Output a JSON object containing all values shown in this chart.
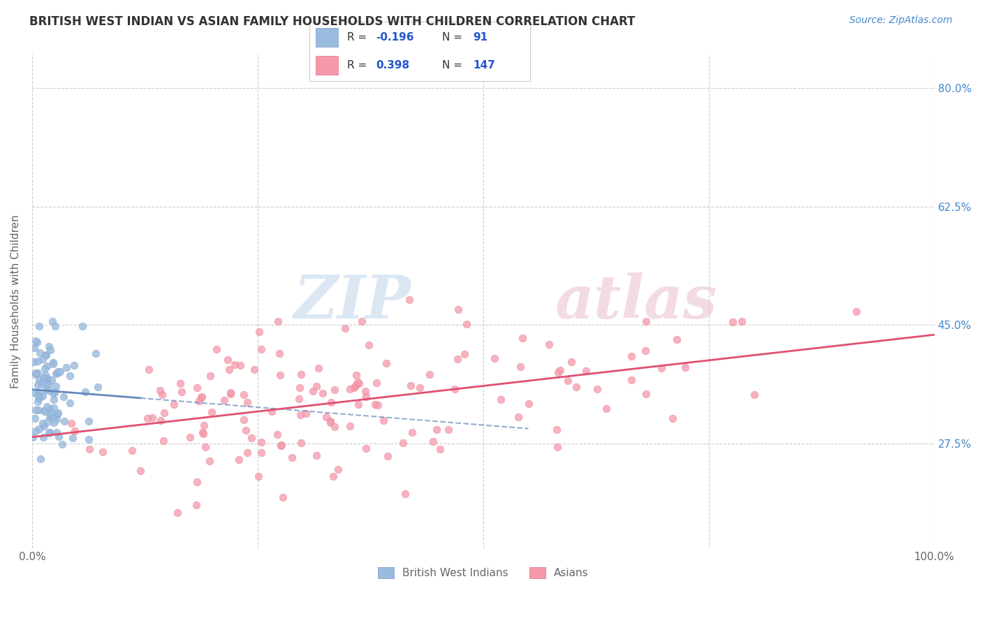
{
  "title": "BRITISH WEST INDIAN VS ASIAN FAMILY HOUSEHOLDS WITH CHILDREN CORRELATION CHART",
  "source": "Source: ZipAtlas.com",
  "ylabel": "Family Households with Children",
  "xlim": [
    0.0,
    1.0
  ],
  "ylim": [
    0.12,
    0.85
  ],
  "yticks": [
    0.275,
    0.45,
    0.625,
    0.8
  ],
  "ytick_labels": [
    "27.5%",
    "45.0%",
    "62.5%",
    "80.0%"
  ],
  "xtick_labels": [
    "0.0%",
    "100.0%"
  ],
  "xtick_pos": [
    0.0,
    1.0
  ],
  "blue_R": -0.196,
  "blue_N": 91,
  "pink_R": 0.398,
  "pink_N": 147,
  "blue_color": "#99bbdd",
  "blue_edge_color": "#7799cc",
  "pink_color": "#f599aa",
  "pink_edge_color": "#e07080",
  "blue_line_color": "#6688bb",
  "pink_line_color": "#e05070",
  "blue_label": "British West Indians",
  "pink_label": "Asians",
  "title_color": "#333333",
  "source_color": "#4488cc",
  "legend_text_color": "#333333",
  "legend_val_color": "#2255cc",
  "background_color": "#ffffff",
  "grid_color": "#cccccc",
  "watermark_zip_color": "#c5d8ee",
  "watermark_atlas_color": "#ecc5ce",
  "blue_seed": 12,
  "pink_seed": 5
}
